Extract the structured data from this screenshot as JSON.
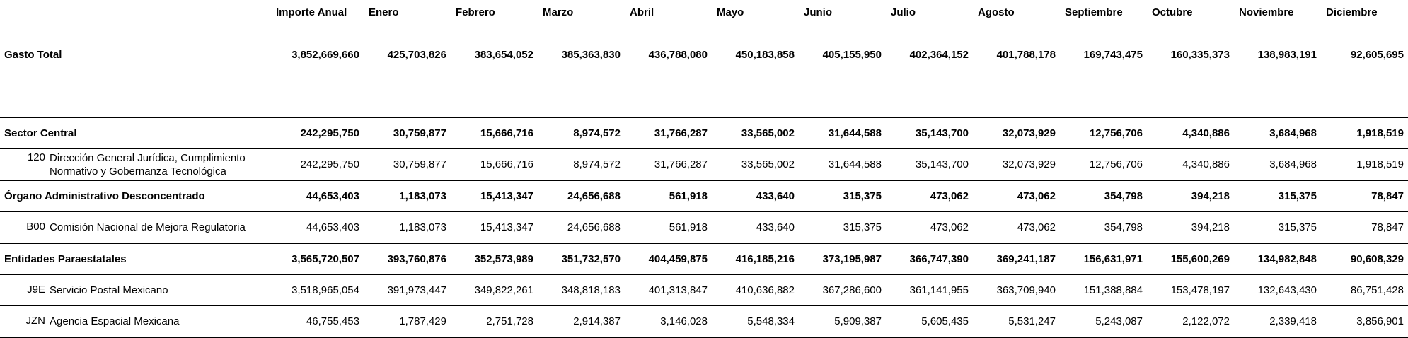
{
  "header": {
    "label": "",
    "columns": [
      "Importe Anual",
      "Enero",
      "Febrero",
      "Marzo",
      "Abril",
      "Mayo",
      "Junio",
      "Julio",
      "Agosto",
      "Septiembre",
      "Octubre",
      "Noviembre",
      "Diciembre"
    ]
  },
  "gasto_total": {
    "label": "Gasto Total",
    "values": [
      "3,852,669,660",
      "425,703,826",
      "383,654,052",
      "385,363,830",
      "436,788,080",
      "450,183,858",
      "405,155,950",
      "402,364,152",
      "401,788,178",
      "169,743,475",
      "160,335,373",
      "138,983,191",
      "92,605,695"
    ]
  },
  "rows": [
    {
      "type": "sector",
      "label": "Sector Central",
      "values": [
        "242,295,750",
        "30,759,877",
        "15,666,716",
        "8,974,572",
        "31,766,287",
        "33,565,002",
        "31,644,588",
        "35,143,700",
        "32,073,929",
        "12,756,706",
        "4,340,886",
        "3,684,968",
        "1,918,519"
      ]
    },
    {
      "type": "unit",
      "code": "120",
      "label_line1": "Dirección General Jurídica, Cumplimiento",
      "label_line2": "Normativo y Gobernanza Tecnológica",
      "values": [
        "242,295,750",
        "30,759,877",
        "15,666,716",
        "8,974,572",
        "31,766,287",
        "33,565,002",
        "31,644,588",
        "35,143,700",
        "32,073,929",
        "12,756,706",
        "4,340,886",
        "3,684,968",
        "1,918,519"
      ]
    },
    {
      "type": "sector",
      "label": "Órgano Administrativo Desconcentrado",
      "values": [
        "44,653,403",
        "1,183,073",
        "15,413,347",
        "24,656,688",
        "561,918",
        "433,640",
        "315,375",
        "473,062",
        "473,062",
        "354,798",
        "394,218",
        "315,375",
        "78,847"
      ]
    },
    {
      "type": "unit",
      "code": "B00",
      "label_line1": "Comisión Nacional de Mejora Regulatoria",
      "label_line2": "",
      "values": [
        "44,653,403",
        "1,183,073",
        "15,413,347",
        "24,656,688",
        "561,918",
        "433,640",
        "315,375",
        "473,062",
        "473,062",
        "354,798",
        "394,218",
        "315,375",
        "78,847"
      ]
    },
    {
      "type": "sector",
      "label": "Entidades Paraestatales",
      "values": [
        "3,565,720,507",
        "393,760,876",
        "352,573,989",
        "351,732,570",
        "404,459,875",
        "416,185,216",
        "373,195,987",
        "366,747,390",
        "369,241,187",
        "156,631,971",
        "155,600,269",
        "134,982,848",
        "90,608,329"
      ]
    },
    {
      "type": "unit",
      "code": "J9E",
      "label_line1": "Servicio Postal Mexicano",
      "label_line2": "",
      "values": [
        "3,518,965,054",
        "391,973,447",
        "349,822,261",
        "348,818,183",
        "401,313,847",
        "410,636,882",
        "367,286,600",
        "361,141,955",
        "363,709,940",
        "151,388,884",
        "153,478,197",
        "132,643,430",
        "86,751,428"
      ]
    },
    {
      "type": "unit",
      "code": "JZN",
      "label_line1": "Agencia Espacial Mexicana",
      "label_line2": "",
      "values": [
        "46,755,453",
        "1,787,429",
        "2,751,728",
        "2,914,387",
        "3,146,028",
        "5,548,334",
        "5,909,387",
        "5,605,435",
        "5,531,247",
        "5,243,087",
        "2,122,072",
        "2,339,418",
        "3,856,901"
      ]
    }
  ]
}
